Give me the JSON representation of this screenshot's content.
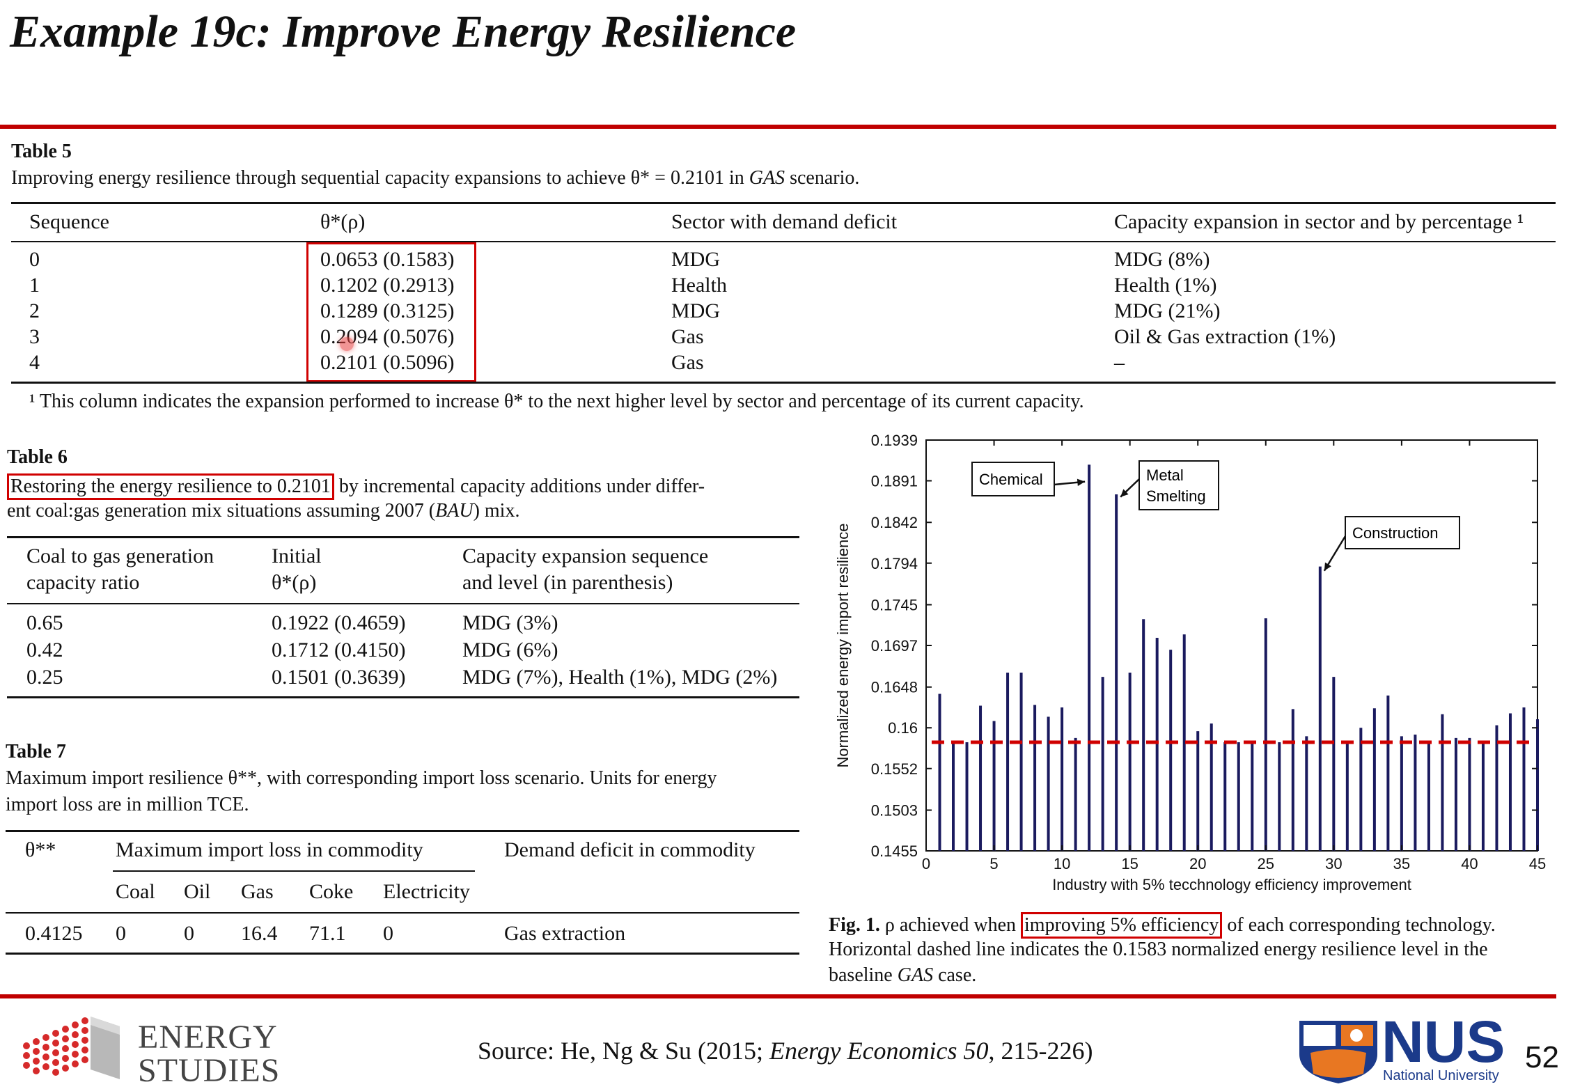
{
  "slide": {
    "title": "Example 19c: Improve Energy Resilience",
    "page_number": "52",
    "source_prefix": "Source: He, Ng & Su (2015; ",
    "source_journal": "Energy Economics 50",
    "source_suffix": ", 215-226)",
    "logo_left_line1": "ENERGY",
    "logo_left_line2": "STUDIES",
    "logo_right_text": "NUS",
    "logo_right_sub": "National University",
    "accent_color": "#c00000"
  },
  "table5": {
    "label": "Table 5",
    "caption_prefix": "Improving energy resilience through sequential capacity expansions to achieve θ* = 0.2101 in ",
    "caption_italic": "GAS",
    "caption_suffix": " scenario.",
    "headers": [
      "Sequence",
      "θ*(ρ)",
      "Sector with demand deficit",
      "Capacity expansion in sector and by percentage ¹"
    ],
    "rows": [
      [
        "0",
        "0.0653 (0.1583)",
        "MDG",
        "MDG (8%)"
      ],
      [
        "1",
        "0.1202 (0.2913)",
        "Health",
        "Health (1%)"
      ],
      [
        "2",
        "0.1289 (0.3125)",
        "MDG",
        "MDG (21%)"
      ],
      [
        "3",
        "0.2094 (0.5076)",
        "Gas",
        "Oil & Gas extraction (1%)"
      ],
      [
        "4",
        "0.2101 (0.5096)",
        "Gas",
        "–"
      ]
    ],
    "footnote": "¹  This column indicates the expansion performed to increase θ* to the next higher level by sector and percentage of its current capacity."
  },
  "table6": {
    "label": "Table 6",
    "caption_highlight": "Restoring the energy resilience to 0.2101",
    "caption_rest1": " by incremental capacity additions under differ-",
    "caption_rest2_prefix": "ent coal:gas generation mix situations assuming 2007 (",
    "caption_rest2_italic": "BAU",
    "caption_rest2_suffix": ") mix.",
    "headers": [
      [
        "Coal to gas generation",
        "capacity ratio"
      ],
      [
        "Initial",
        "θ*(ρ)"
      ],
      [
        "Capacity expansion sequence",
        "and level (in parenthesis)"
      ]
    ],
    "rows": [
      [
        "0.65",
        "0.1922 (0.4659)",
        "MDG (3%)"
      ],
      [
        "0.42",
        "0.1712 (0.4150)",
        "MDG (6%)"
      ],
      [
        "0.25",
        "0.1501 (0.3639)",
        "MDG (7%), Health (1%), MDG (2%)"
      ]
    ]
  },
  "table7": {
    "label": "Table 7",
    "caption_line1": "Maximum import resilience θ**, with corresponding import loss scenario. Units for energy",
    "caption_line2": "import loss are in million TCE.",
    "header_theta": "θ**",
    "header_group": "Maximum import loss in commodity",
    "header_deficit": "Demand deficit in commodity",
    "sub_headers": [
      "Coal",
      "Oil",
      "Gas",
      "Coke",
      "Electricity"
    ],
    "row": [
      "0.4125",
      "0",
      "0",
      "16.4",
      "71.1",
      "0",
      "Gas extraction"
    ]
  },
  "figure1": {
    "caption_label": "Fig. 1.",
    "caption_line1_a": " ρ achieved when ",
    "caption_highlight": "improving 5% efficiency",
    "caption_line1_b": " of each corresponding technology.",
    "caption_line2": "Horizontal dashed line indicates the 0.1583 normalized energy resilience level in the",
    "caption_line3_prefix": "baseline ",
    "caption_line3_italic": "GAS",
    "caption_line3_suffix": " case.",
    "callouts": {
      "chemical": "Chemical",
      "metal1": "Metal",
      "metal2": "Smelting",
      "construction": "Construction"
    }
  },
  "chart_data": {
    "type": "bar",
    "xlabel": "Industry with 5% tecchnology efficiency improvement",
    "ylabel": "Normalized energy import resilience",
    "xlim": [
      0,
      45
    ],
    "ylim": [
      0.1455,
      0.1939
    ],
    "x_ticks": [
      "0",
      "5",
      "10",
      "15",
      "20",
      "25",
      "30",
      "35",
      "40",
      "45"
    ],
    "y_ticks": [
      "0.1455",
      "0.1503",
      "0.1552",
      "0.16",
      "0.1648",
      "0.1697",
      "0.1745",
      "0.1794",
      "0.1842",
      "0.1891",
      "0.1939"
    ],
    "baseline": 0.1583,
    "bar_color": "#1a1a5e",
    "baseline_color": "#d00000",
    "x": [
      1,
      2,
      3,
      4,
      5,
      6,
      7,
      8,
      9,
      10,
      11,
      12,
      13,
      14,
      15,
      16,
      17,
      18,
      19,
      20,
      21,
      22,
      23,
      24,
      25,
      26,
      27,
      28,
      29,
      30,
      31,
      32,
      33,
      34,
      35,
      36,
      37,
      38,
      39,
      40,
      41,
      42,
      43,
      44,
      45
    ],
    "values": [
      0.164,
      0.1583,
      0.1583,
      0.1626,
      0.1608,
      0.1665,
      0.1665,
      0.1627,
      0.1613,
      0.1624,
      0.1588,
      0.191,
      0.166,
      0.1875,
      0.1665,
      0.1728,
      0.1706,
      0.1692,
      0.171,
      0.1596,
      0.1605,
      0.1583,
      0.1583,
      0.1583,
      0.1729,
      0.1583,
      0.1622,
      0.159,
      0.179,
      0.166,
      0.1583,
      0.16,
      0.1623,
      0.1638,
      0.159,
      0.1592,
      0.1583,
      0.1616,
      0.1588,
      0.1588,
      0.1583,
      0.1603,
      0.1617,
      0.1624,
      0.161
    ]
  }
}
